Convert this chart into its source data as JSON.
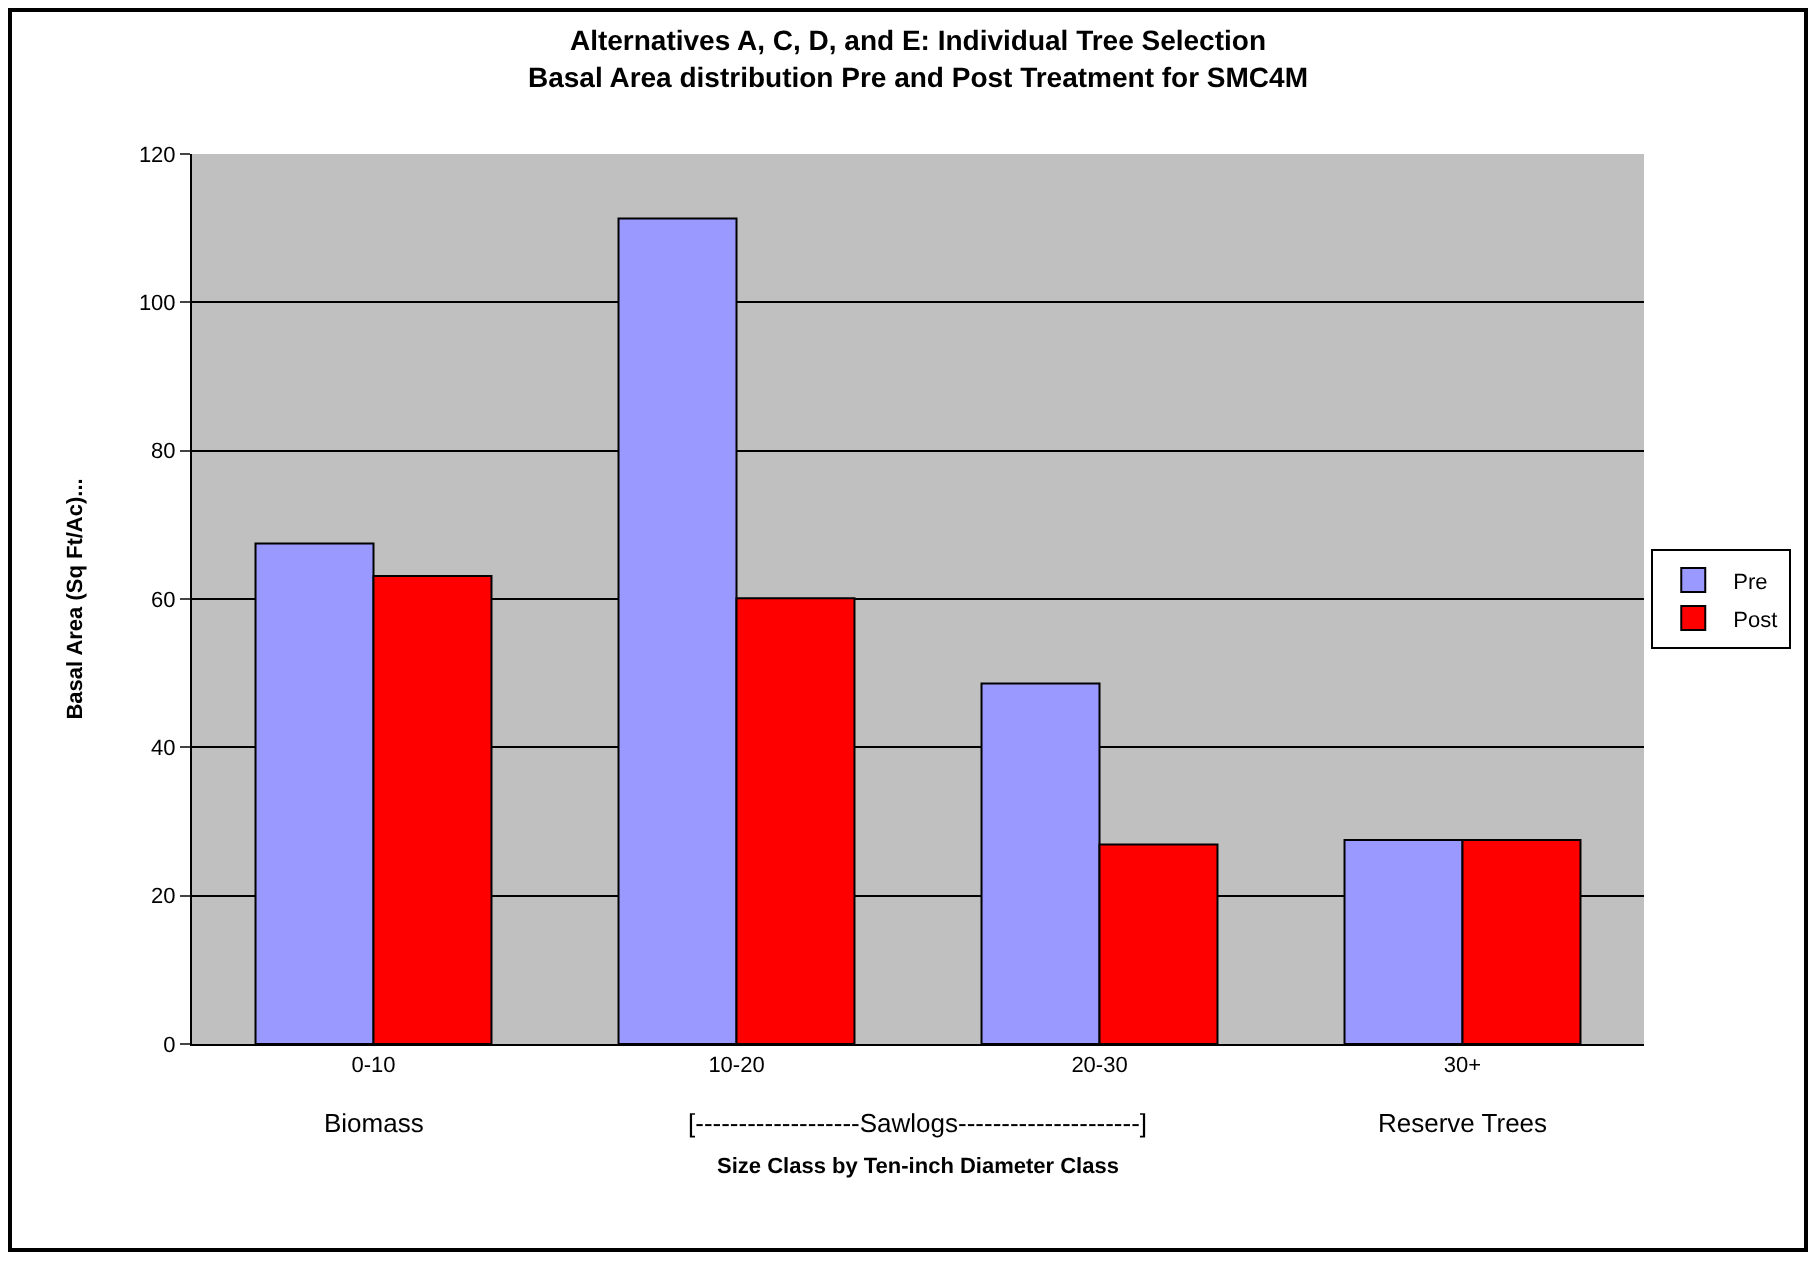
{
  "chart_data": {
    "type": "bar",
    "title": "Alternatives A, C, D, and E: Individual Tree Selection\nBasal Area distribution Pre and Post Treatment for SMC4M",
    "xlabel": "Size Class by Ten-inch Diameter Class",
    "ylabel": "Basal Area (Sq Ft/Ac)...",
    "categories": [
      "0-10",
      "10-20",
      "20-30",
      "30+"
    ],
    "series": [
      {
        "name": "Pre",
        "color": "#9999ff",
        "values": [
          67.5,
          111.3,
          48.6,
          27.5
        ]
      },
      {
        "name": "Post",
        "color": "#ff0000",
        "values": [
          63.1,
          60.1,
          26.9,
          27.5
        ]
      }
    ],
    "ylim": [
      0,
      120
    ],
    "yticks": [
      0,
      20,
      40,
      60,
      80,
      100,
      120
    ],
    "grid": "y",
    "legend": "right",
    "annotations": [
      "Biomass",
      "[-------------------Sawlogs---------------------]",
      "Reserve Trees"
    ]
  }
}
